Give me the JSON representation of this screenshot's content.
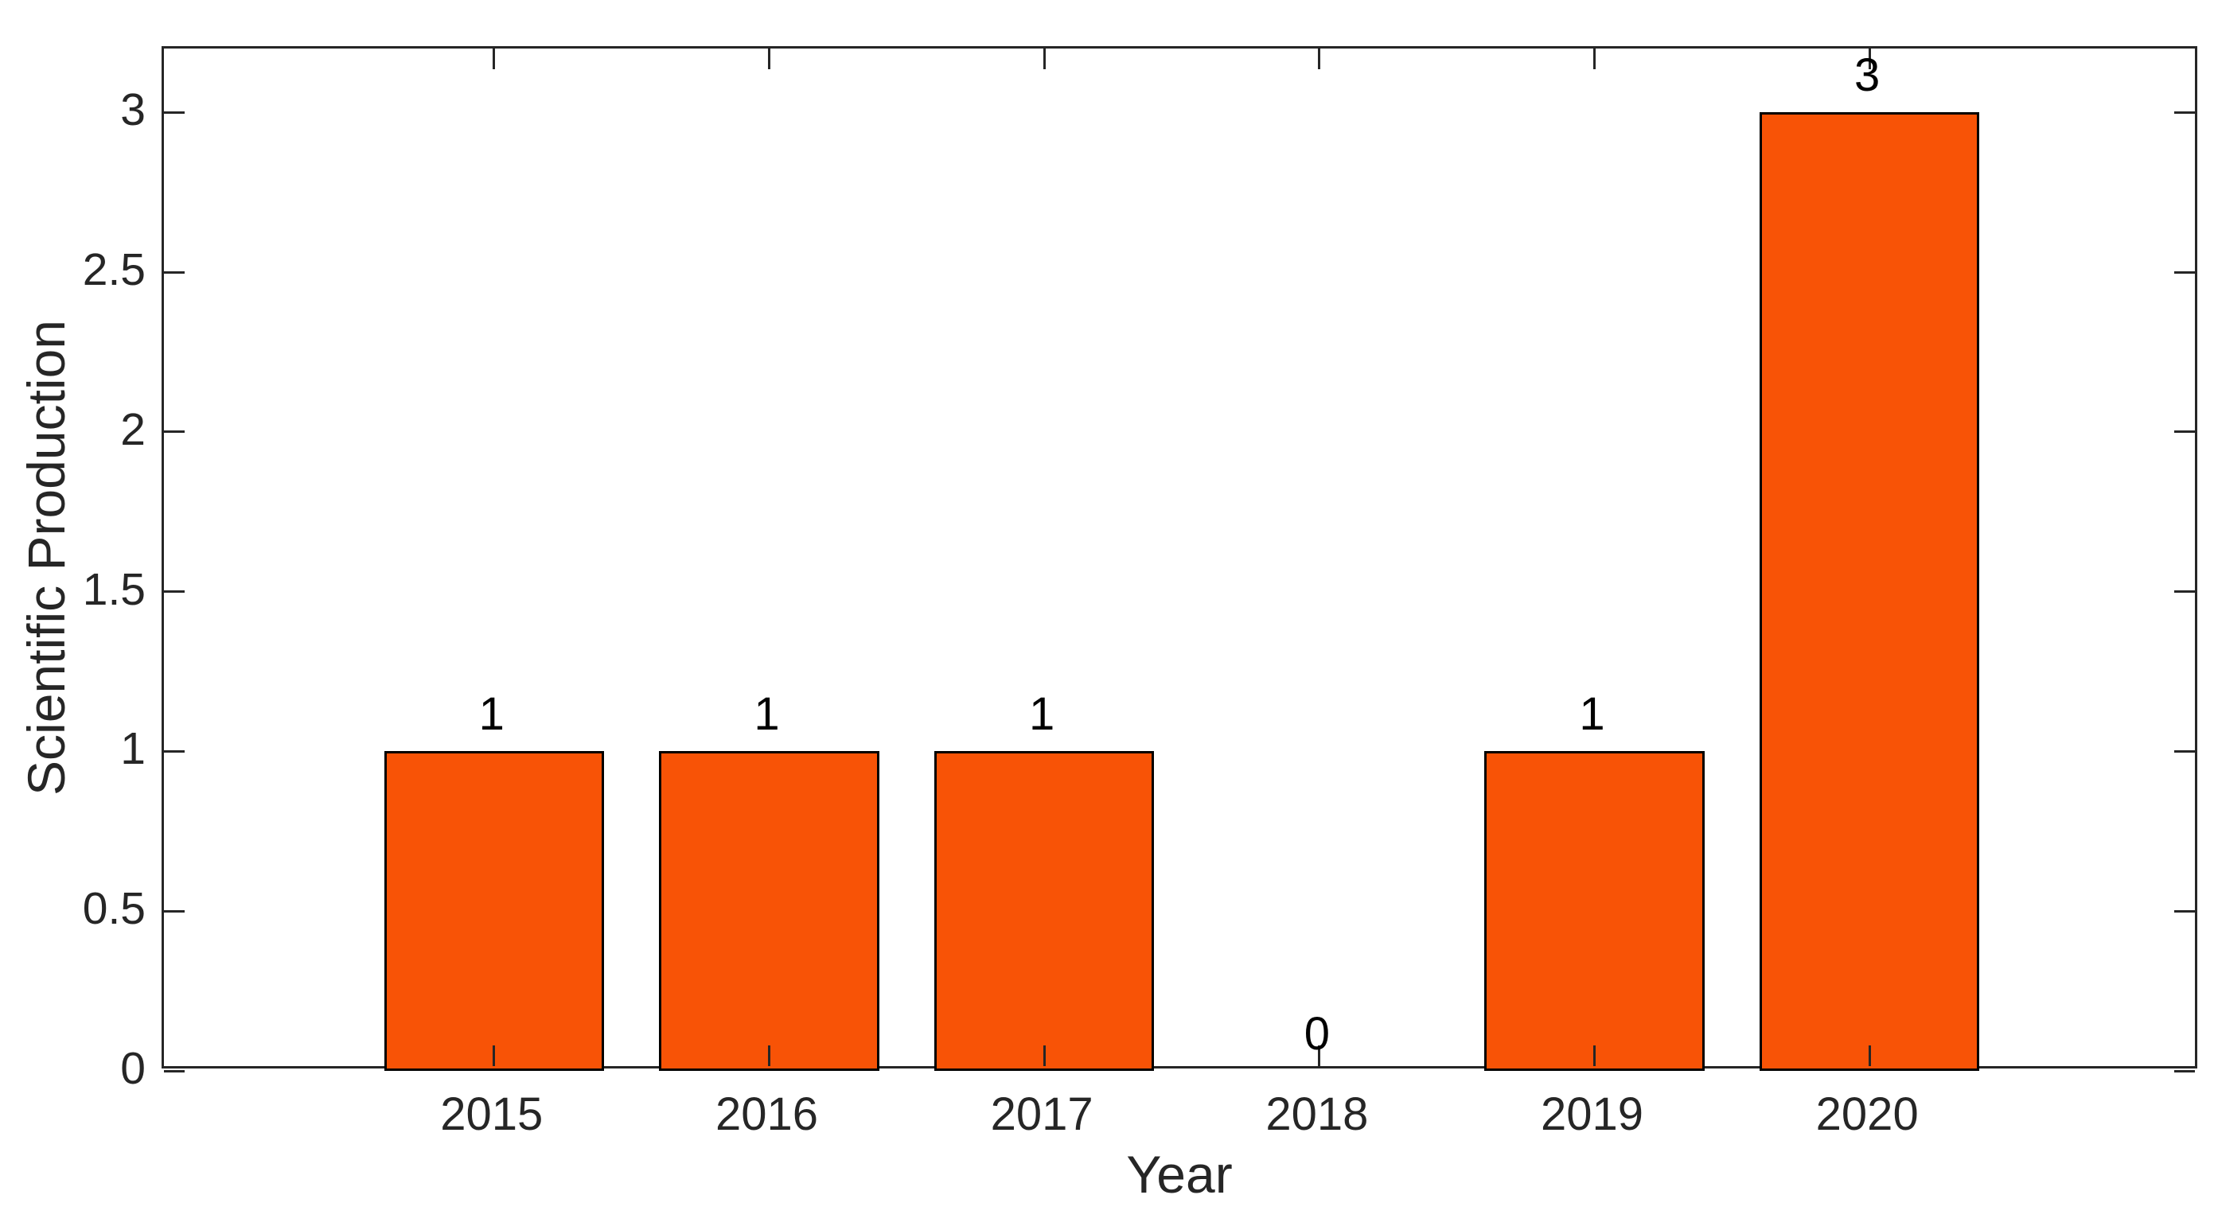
{
  "chart_data": {
    "type": "bar",
    "title": "",
    "xlabel": "Year",
    "ylabel": "Scientific Production",
    "categories": [
      "2015",
      "2016",
      "2017",
      "2018",
      "2019",
      "2020"
    ],
    "values": [
      1,
      1,
      1,
      0,
      1,
      3
    ],
    "bar_labels": [
      "1",
      "1",
      "1",
      "0",
      "1",
      "3"
    ],
    "xlim": [
      2013.8,
      2021.2
    ],
    "ylim": [
      0,
      3.2
    ],
    "yticks": [
      0,
      0.5,
      1,
      1.5,
      2,
      2.5,
      3
    ],
    "ytick_labels": [
      "0",
      "0.5",
      "1",
      "1.5",
      "2",
      "2.5",
      "3"
    ],
    "bar_width_ratio": 0.8,
    "bar_color": "#F85306",
    "bar_edge_color": "#000000",
    "axis_color": "#262626",
    "grid": false,
    "legend": null
  }
}
